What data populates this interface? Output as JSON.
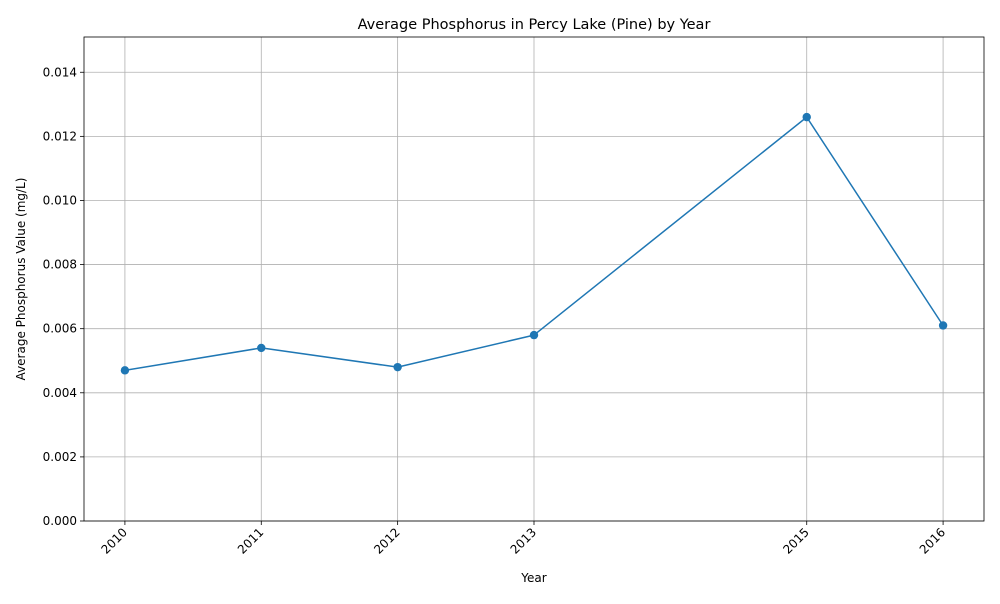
{
  "chart_data": {
    "type": "line",
    "title": "Average Phosphorus in Percy Lake (Pine) by Year",
    "xlabel": "Year",
    "ylabel": "Average Phosphorus Value (mg/L)",
    "x": [
      2010,
      2011,
      2012,
      2013,
      2015,
      2016
    ],
    "x_tick_labels": [
      "2010",
      "2011",
      "2012",
      "2013",
      "2015",
      "2016"
    ],
    "series": [
      {
        "values": [
          0.0047,
          0.0054,
          0.0048,
          0.0058,
          0.0126,
          0.0061
        ],
        "color": "#1f77b4"
      }
    ],
    "xlim": [
      2009.7,
      2016.3
    ],
    "ylim": [
      0,
      0.0151
    ],
    "y_ticks": [
      0,
      0.002,
      0.004,
      0.006,
      0.008,
      0.01,
      0.012,
      0.014
    ],
    "y_tick_labels": [
      "0.000",
      "0.002",
      "0.004",
      "0.006",
      "0.008",
      "0.010",
      "0.012",
      "0.014"
    ],
    "grid": true,
    "grid_color": "#b0b0b0",
    "marker": "circle",
    "x_tick_rotation_deg": -45
  }
}
